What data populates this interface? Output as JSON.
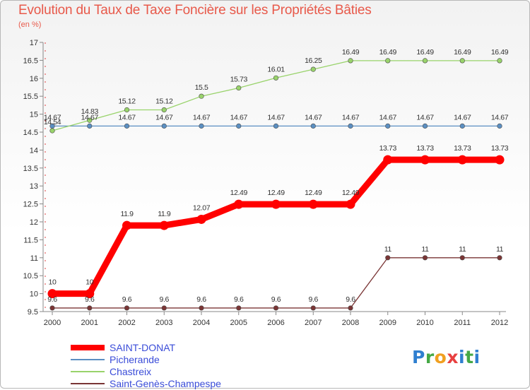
{
  "header": {
    "title": "Evolution du Taux de Taxe Foncière sur les Propriétés Bâties",
    "subtitle": "(en %)"
  },
  "logo": {
    "text": "Proxiti"
  },
  "chart_data": {
    "type": "line",
    "x": [
      "2000",
      "2001",
      "2002",
      "2003",
      "2004",
      "2005",
      "2006",
      "2007",
      "2008",
      "2009",
      "2010",
      "2011",
      "2012"
    ],
    "ylim": [
      9.5,
      17
    ],
    "yticks": [
      "9.5",
      "10",
      "10.5",
      "11",
      "11.5",
      "12",
      "12.5",
      "13",
      "13.5",
      "14",
      "14.5",
      "15",
      "15.5",
      "16",
      "16.5",
      "17"
    ],
    "grid": false,
    "legend_position": "bottom-left",
    "series": [
      {
        "name": "SAINT-DONAT",
        "color": "#ff0000",
        "bold": true,
        "values": [
          10,
          10,
          11.9,
          11.9,
          12.07,
          12.49,
          12.49,
          12.49,
          12.49,
          13.73,
          13.73,
          13.73,
          13.73
        ],
        "labels": [
          "10",
          "10",
          "11.9",
          "11.9",
          "12.07",
          "12.49",
          "12.49",
          "12.49",
          "12.49",
          "13.73",
          "13.73",
          "13.73",
          "13.73"
        ]
      },
      {
        "name": "Picherande",
        "color": "#5b8fc2",
        "bold": false,
        "values": [
          14.67,
          14.67,
          14.67,
          14.67,
          14.67,
          14.67,
          14.67,
          14.67,
          14.67,
          14.67,
          14.67,
          14.67,
          14.67
        ],
        "labels": [
          "14.67",
          "14.67",
          "14.67",
          "14.67",
          "14.67",
          "14.67",
          "14.67",
          "14.67",
          "14.67",
          "14.67",
          "14.67",
          "14.67",
          "14.67"
        ]
      },
      {
        "name": "Chastreix",
        "color": "#99d36b",
        "bold": false,
        "values": [
          14.54,
          14.83,
          15.12,
          15.12,
          15.5,
          15.73,
          16.01,
          16.25,
          16.49,
          16.49,
          16.49,
          16.49,
          16.49
        ],
        "labels": [
          "14.54",
          "14.83",
          "15.12",
          "15.12",
          "15.5",
          "15.73",
          "16.01",
          "16.25",
          "16.49",
          "16.49",
          "16.49",
          "16.49",
          "16.49"
        ]
      },
      {
        "name": "Saint-Genès-Champespe",
        "color": "#7a3535",
        "bold": false,
        "values": [
          9.6,
          9.6,
          9.6,
          9.6,
          9.6,
          9.6,
          9.6,
          9.6,
          9.6,
          11,
          11,
          11,
          11
        ],
        "labels": [
          "9.6",
          "9.6",
          "9.6",
          "9.6",
          "9.6",
          "9.6",
          "9.6",
          "9.6",
          "9.6",
          "11",
          "11",
          "11",
          "11"
        ]
      }
    ]
  }
}
